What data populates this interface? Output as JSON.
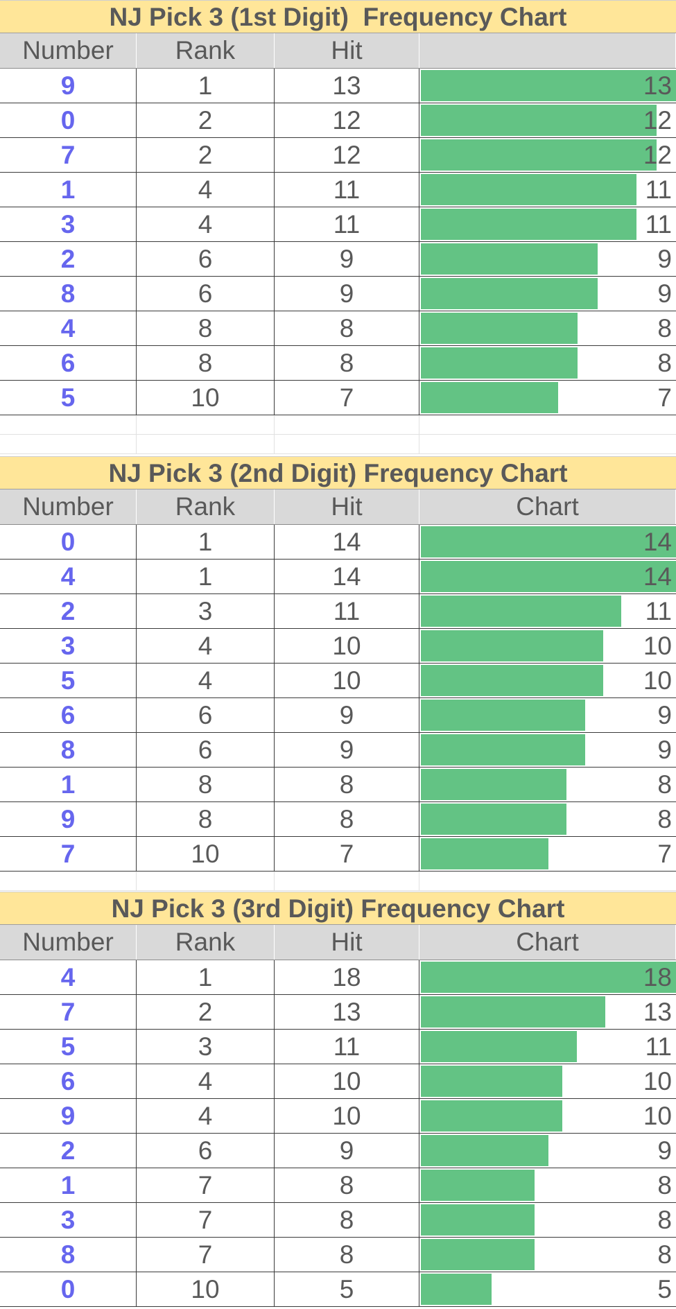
{
  "columns": [
    "Number",
    "Rank",
    "Hit"
  ],
  "chart_data": [
    {
      "type": "bar",
      "title": "NJ Pick 3 (1st Digit)  Frequency Chart",
      "chart_header": "",
      "categories": [
        "9",
        "0",
        "7",
        "1",
        "3",
        "2",
        "8",
        "4",
        "6",
        "5"
      ],
      "ranks": [
        1,
        2,
        2,
        4,
        4,
        6,
        6,
        8,
        8,
        10
      ],
      "values": [
        13,
        12,
        12,
        11,
        11,
        9,
        9,
        8,
        8,
        7
      ],
      "xlim": [
        0,
        13
      ]
    },
    {
      "type": "bar",
      "title": "NJ Pick 3 (2nd Digit) Frequency Chart",
      "chart_header": "Chart",
      "categories": [
        "0",
        "4",
        "2",
        "3",
        "5",
        "6",
        "8",
        "1",
        "9",
        "7"
      ],
      "ranks": [
        1,
        1,
        3,
        4,
        4,
        6,
        6,
        8,
        8,
        10
      ],
      "values": [
        14,
        14,
        11,
        10,
        10,
        9,
        9,
        8,
        8,
        7
      ],
      "xlim": [
        0,
        14
      ]
    },
    {
      "type": "bar",
      "title": "NJ Pick 3 (3rd Digit) Frequency Chart",
      "chart_header": "Chart",
      "categories": [
        "4",
        "7",
        "5",
        "6",
        "9",
        "2",
        "1",
        "3",
        "8",
        "0"
      ],
      "ranks": [
        1,
        2,
        3,
        4,
        4,
        6,
        7,
        7,
        7,
        10
      ],
      "values": [
        18,
        13,
        11,
        10,
        10,
        9,
        8,
        8,
        8,
        5
      ],
      "xlim": [
        0,
        18
      ]
    }
  ],
  "colors": {
    "title_bg": "#ffe699",
    "header_bg": "#d9d9d9",
    "bar": "#63c384",
    "number_text": "#6666ee",
    "text": "#595959"
  }
}
